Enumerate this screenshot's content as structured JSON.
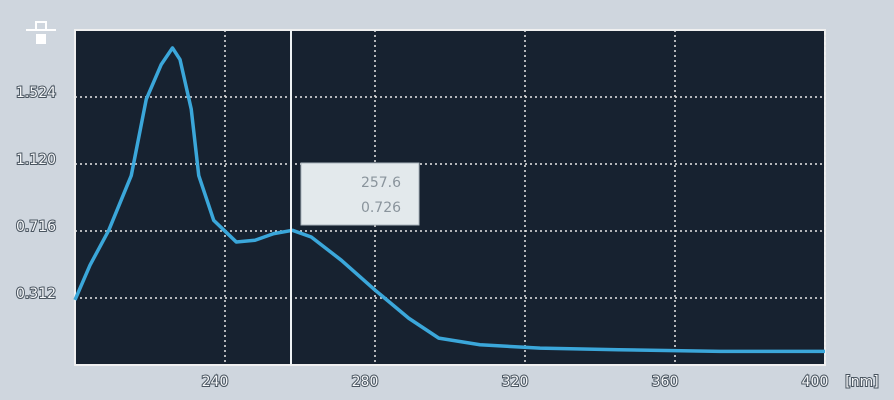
{
  "chart_data": {
    "type": "line",
    "x": [
      200,
      204,
      209,
      215,
      219,
      223,
      226,
      228,
      231,
      233,
      237,
      243,
      248,
      253,
      258,
      263,
      271,
      280,
      289,
      297,
      308,
      324,
      345,
      372,
      400
    ],
    "values": [
      0.3,
      0.51,
      0.72,
      1.05,
      1.51,
      1.72,
      1.82,
      1.75,
      1.45,
      1.05,
      0.78,
      0.65,
      0.66,
      0.7,
      0.72,
      0.68,
      0.54,
      0.36,
      0.19,
      0.07,
      0.03,
      0.01,
      0.0,
      -0.01,
      -0.01
    ],
    "color": "#3ba7da",
    "xlim": [
      200,
      400
    ],
    "xticks": [
      240,
      280,
      320,
      360,
      400
    ],
    "ylim": [
      -0.092,
      1.928
    ],
    "yticks": [
      0.312,
      0.716,
      {
        "value": 1.12,
        "label": "1.120"
      },
      1.524
    ],
    "x_unit": "[nm]",
    "grid": true,
    "cursor": {
      "x": 257.6,
      "y": 0.726
    }
  }
}
